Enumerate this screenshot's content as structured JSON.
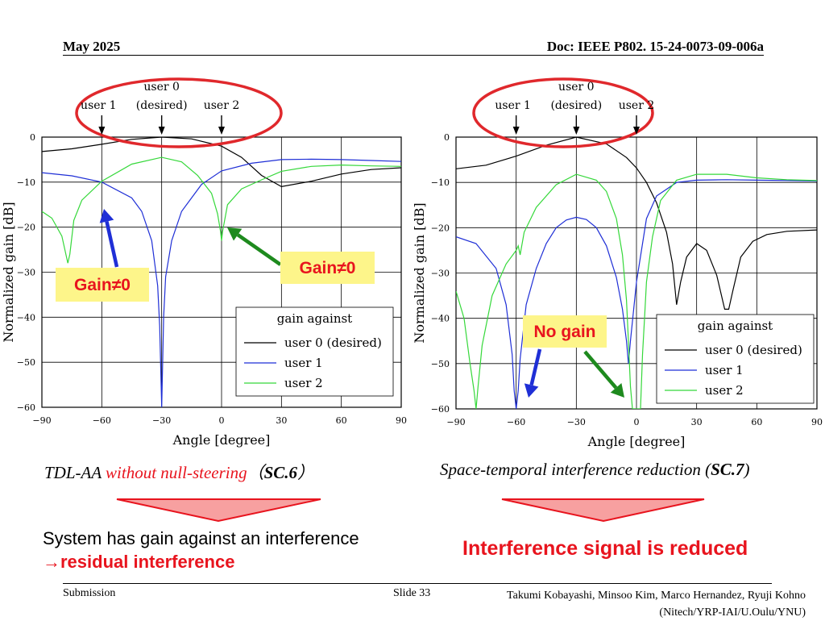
{
  "header": {
    "date": "May 2025",
    "doc": "Doc: IEEE P802. 15-24-0073-09-006a"
  },
  "footer": {
    "left": "Submission",
    "slide": "Slide 33",
    "authors": "Takumi Kobayashi, Minsoo Kim, Marco Hernandez, Ryuji Kohno (Nitech/YRP-IAI/U.Oulu/YNU)"
  },
  "left_panel": {
    "caption_prefix": "TDL-AA ",
    "caption_red": "without null-steering",
    "caption_paren_open": "（",
    "caption_sc": "SC.6",
    "caption_paren_close": "）",
    "callout_a": "Gain≠0",
    "callout_b": "Gain≠0",
    "summary_line1": "System has gain against an interference",
    "summary_line2": "→residual interference"
  },
  "right_panel": {
    "caption_main": "Space-temporal interference reduction (",
    "caption_sc": "SC.7",
    "caption_close": ")",
    "callout": "No gain",
    "summary": "Interference signal is reduced"
  },
  "user_labels": {
    "user0_line1": "user 0",
    "user0_line2": "(desired)",
    "user1": "user 1",
    "user2": "user 2"
  },
  "colors": {
    "ellipse": "#e0282c",
    "callout_bg": "#fdf58a",
    "user0": "#000000",
    "user1": "#1f2fd6",
    "user2": "#35d83a",
    "arrow_blue": "#1f2fd6",
    "arrow_green": "#1e8a1e",
    "triangle": "#f7a0a0"
  },
  "chart_data": [
    {
      "type": "line",
      "xlabel": "Angle [degree]",
      "ylabel": "Normalized gain [dB]",
      "xlim": [
        -90,
        90
      ],
      "ylim": [
        -60,
        0
      ],
      "xticks": [
        -90,
        -60,
        -30,
        0,
        30,
        60,
        90
      ],
      "yticks": [
        0,
        -10,
        -20,
        -30,
        -40,
        -50,
        -60
      ],
      "grid": true,
      "legend_title": "gain against",
      "legend_position": "bottom-right",
      "series": [
        {
          "name": "user 0 (desired)",
          "x": [
            -90,
            -75,
            -60,
            -45,
            -30,
            -15,
            0,
            10,
            20,
            30,
            45,
            60,
            75,
            90
          ],
          "y": [
            -3.2,
            -2.6,
            -1.6,
            -0.5,
            0,
            -0.4,
            -2.0,
            -4.5,
            -8.5,
            -11,
            -9.8,
            -8.2,
            -7.2,
            -6.8
          ]
        },
        {
          "name": "user 1",
          "x": [
            -90,
            -75,
            -60,
            -45,
            -40,
            -35,
            -32,
            -31,
            -30,
            -29,
            -28,
            -25,
            -20,
            -10,
            0,
            15,
            30,
            45,
            60,
            75,
            90
          ],
          "y": [
            -7.9,
            -8.6,
            -10,
            -13.5,
            -16.5,
            -23,
            -33,
            -42,
            -60,
            -40,
            -31,
            -23,
            -16.5,
            -10.5,
            -7.5,
            -5.8,
            -5.0,
            -4.9,
            -5.0,
            -5.2,
            -5.4
          ]
        },
        {
          "name": "user 2",
          "x": [
            -90,
            -85,
            -80,
            -77,
            -76,
            -74,
            -70,
            -60,
            -45,
            -30,
            -20,
            -12,
            -5,
            -2,
            -0.5,
            0,
            0.5,
            3,
            10,
            20,
            30,
            45,
            60,
            75,
            90
          ],
          "y": [
            -16.5,
            -18,
            -22,
            -28,
            -26,
            -18.5,
            -14,
            -9.8,
            -6,
            -4.5,
            -5.5,
            -8.5,
            -12.5,
            -17,
            -21,
            -23,
            -21,
            -15,
            -11.5,
            -9.5,
            -7.6,
            -6.5,
            -6.2,
            -6.4,
            -6.5
          ]
        }
      ]
    },
    {
      "type": "line",
      "xlabel": "Angle [degree]",
      "ylabel": "Normalized gain [dB]",
      "xlim": [
        -90,
        90
      ],
      "ylim": [
        -60,
        0
      ],
      "xticks": [
        -90,
        -60,
        -30,
        0,
        30,
        60,
        90
      ],
      "yticks": [
        0,
        -10,
        -20,
        -30,
        -40,
        -50,
        -60
      ],
      "grid": true,
      "legend_title": "gain against",
      "legend_position": "bottom-right",
      "series": [
        {
          "name": "user 0 (desired)",
          "x": [
            -90,
            -75,
            -60,
            -45,
            -30,
            -15,
            -5,
            0,
            5,
            10,
            15,
            18,
            20,
            22,
            25,
            30,
            35,
            40,
            44,
            46,
            48,
            52,
            58,
            65,
            75,
            90
          ],
          "y": [
            -7,
            -6.2,
            -4.2,
            -1.8,
            0,
            -1.5,
            -4.5,
            -6.8,
            -10,
            -14.5,
            -21,
            -28,
            -37,
            -32,
            -26.5,
            -23.5,
            -25,
            -30.5,
            -38,
            -38,
            -34,
            -26.5,
            -23,
            -21.5,
            -20.8,
            -20.5
          ]
        },
        {
          "name": "user 1",
          "x": [
            -90,
            -80,
            -70,
            -65,
            -62,
            -61,
            -60,
            -59,
            -58,
            -55,
            -50,
            -45,
            -40,
            -35,
            -30,
            -25,
            -20,
            -15,
            -10,
            -7,
            -5,
            -4,
            -3,
            0,
            5,
            10,
            20,
            30,
            45,
            60,
            75,
            90
          ],
          "y": [
            -22,
            -23.5,
            -29,
            -37,
            -48,
            -56,
            -60,
            -56,
            -49,
            -37,
            -29,
            -23.5,
            -20,
            -18.3,
            -17.7,
            -18.2,
            -20,
            -24,
            -31,
            -38,
            -45,
            -50,
            -45,
            -32,
            -18,
            -13,
            -10,
            -9.5,
            -9.4,
            -9.5,
            -9.6,
            -9.7
          ]
        },
        {
          "name": "user 2",
          "x": [
            -90,
            -86,
            -83,
            -81,
            -80,
            -79,
            -77,
            -72,
            -65,
            -60,
            -59,
            -58,
            -56,
            -50,
            -40,
            -30,
            -20,
            -15,
            -10,
            -7,
            -5,
            -4,
            -3,
            -2,
            -1,
            0,
            1,
            2,
            3,
            4,
            5,
            8,
            12,
            20,
            30,
            45,
            60,
            75,
            90
          ],
          "y": [
            -34,
            -40,
            -50,
            -56,
            -60,
            -55,
            -46,
            -35,
            -28,
            -25,
            -24,
            -26,
            -21,
            -15.5,
            -10.5,
            -8.2,
            -9.5,
            -12,
            -18,
            -26,
            -36,
            -45,
            -55,
            -60,
            -60,
            -60,
            -60,
            -60,
            -48,
            -40,
            -32,
            -22,
            -14,
            -9.5,
            -8.2,
            -8.2,
            -9,
            -9.4,
            -9.6
          ]
        }
      ]
    }
  ]
}
